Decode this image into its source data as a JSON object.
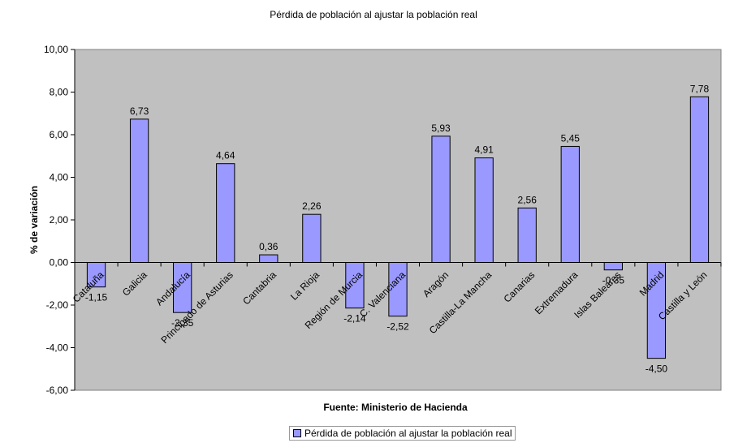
{
  "chart_data": {
    "type": "bar",
    "title": "Pérdida de población al ajustar la población real",
    "xlabel": "Fuente: Ministerio de Hacienda",
    "ylabel": "% de variación",
    "ylim": [
      -6,
      10
    ],
    "yticks": [
      -6,
      -4,
      -2,
      0,
      2,
      4,
      6,
      8,
      10
    ],
    "ytick_labels": [
      "-6,00",
      "-4,00",
      "-2,00",
      "0,00",
      "2,00",
      "4,00",
      "6,00",
      "8,00",
      "10,00"
    ],
    "grid": false,
    "legend_position": "bottom",
    "categories": [
      "Cataluña",
      "Galicia",
      "Andalucía",
      "Principado de Asturias",
      "Cantabria",
      "La Rioja",
      "Región de Murcia",
      "C. Valenciana",
      "Aragón",
      "Castilla-La Mancha",
      "Canarias",
      "Extremadura",
      "Islas Baleares",
      "Madrid",
      "Castilla y León"
    ],
    "series": [
      {
        "name": "Pérdida de población al ajustar la población real",
        "values": [
          -1.15,
          6.73,
          -2.35,
          4.64,
          0.36,
          2.26,
          -2.14,
          -2.52,
          5.93,
          4.91,
          2.56,
          5.45,
          -0.35,
          -4.5,
          7.78
        ],
        "data_labels": [
          "-1,15",
          "6,73",
          "-2,35",
          "4,64",
          "0,36",
          "2,26",
          "-2,14",
          "-2,52",
          "5,93",
          "4,91",
          "2,56",
          "5,45",
          "-0,35",
          "-4,50",
          "7,78"
        ]
      }
    ],
    "colors": {
      "bar": "#9999ff",
      "plot_background": "#c0c0c0",
      "bar_border": "#000000"
    }
  }
}
